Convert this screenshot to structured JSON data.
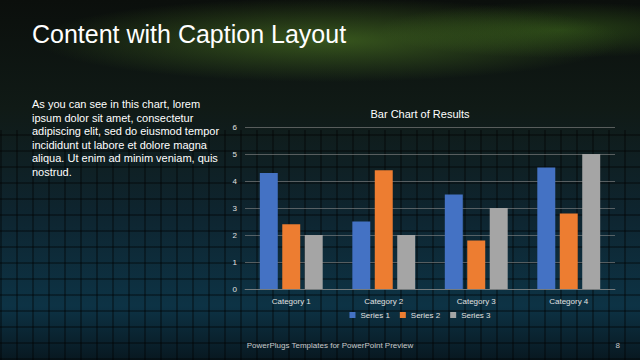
{
  "slide": {
    "title": "Content with Caption Layout",
    "caption": "As you can see in this chart, lorem ipsum dolor sit amet, consectetur adipiscing elit, sed do eiusmod tempor incididunt ut labore et dolore magna aliqua. Ut enim ad minim veniam, quis nostrud.",
    "footer": "PowerPlugs Templates for PowerPoint Preview",
    "page": "8"
  },
  "chart_data": {
    "type": "bar",
    "title": "Bar Chart of Results",
    "categories": [
      "Category 1",
      "Category 2",
      "Category 3",
      "Category 4"
    ],
    "series": [
      {
        "name": "Series 1",
        "color": "#4472c4",
        "values": [
          4.3,
          2.5,
          3.5,
          4.5
        ]
      },
      {
        "name": "Series 2",
        "color": "#ed7d31",
        "values": [
          2.4,
          4.4,
          1.8,
          2.8
        ]
      },
      {
        "name": "Series 3",
        "color": "#a5a5a5",
        "values": [
          2,
          2,
          3,
          5
        ]
      }
    ],
    "ylim": [
      0,
      6
    ],
    "yticks": [
      0,
      1,
      2,
      3,
      4,
      5,
      6
    ],
    "grid": true,
    "legend": "bottom"
  }
}
